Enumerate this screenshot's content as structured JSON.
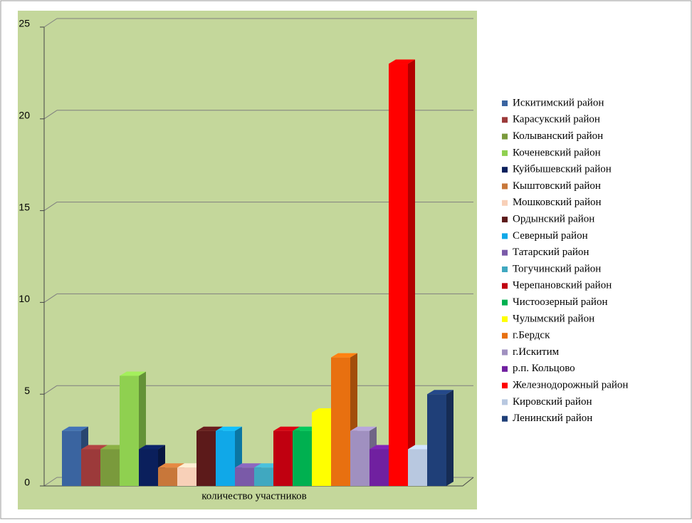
{
  "chart_data": {
    "type": "bar",
    "categories": [
      "количество участников"
    ],
    "series": [
      {
        "name": "Искитимский район",
        "color": "#3a64a0",
        "values": [
          3
        ]
      },
      {
        "name": "Карасукский район",
        "color": "#9c3a3a",
        "values": [
          2
        ]
      },
      {
        "name": "Колыванский район",
        "color": "#7a9a3c",
        "values": [
          2
        ]
      },
      {
        "name": "Коченевский район",
        "color": "#8fd050",
        "values": [
          6
        ]
      },
      {
        "name": "Куйбышевский район",
        "color": "#0a1f5c",
        "values": [
          2
        ]
      },
      {
        "name": "Кыштовский район",
        "color": "#c8773a",
        "values": [
          1
        ]
      },
      {
        "name": "Мошковский район",
        "color": "#f8d0b8",
        "values": [
          1
        ]
      },
      {
        "name": "Ордынский район",
        "color": "#5c1a1a",
        "values": [
          3
        ]
      },
      {
        "name": "Северный район",
        "color": "#10a8e8",
        "values": [
          3
        ]
      },
      {
        "name": "Татарский район",
        "color": "#7a5aa8",
        "values": [
          1
        ]
      },
      {
        "name": "Тогучинский район",
        "color": "#40a8c0",
        "values": [
          1
        ]
      },
      {
        "name": "Черепановский район",
        "color": "#c00010",
        "values": [
          3
        ]
      },
      {
        "name": "Чистоозерный район",
        "color": "#00b050",
        "values": [
          3
        ]
      },
      {
        "name": "Чулымский район",
        "color": "#ffff00",
        "values": [
          4
        ]
      },
      {
        "name": "г.Бердск",
        "color": "#e87010",
        "values": [
          7
        ]
      },
      {
        "name": "г.Искитим",
        "color": "#a090c0",
        "values": [
          3
        ]
      },
      {
        "name": "р.п. Кольцово",
        "color": "#7020a0",
        "values": [
          2
        ]
      },
      {
        "name": "Железнодорожный район",
        "color": "#ff0000",
        "values": [
          23
        ]
      },
      {
        "name": "Кировский район",
        "color": "#b8c8e0",
        "values": [
          2
        ]
      },
      {
        "name": "Ленинский район",
        "color": "#1f3f78",
        "values": [
          5
        ]
      }
    ],
    "ylim": [
      0,
      25
    ],
    "yticks": [
      0,
      5,
      10,
      15,
      20,
      25
    ],
    "grid": true
  }
}
